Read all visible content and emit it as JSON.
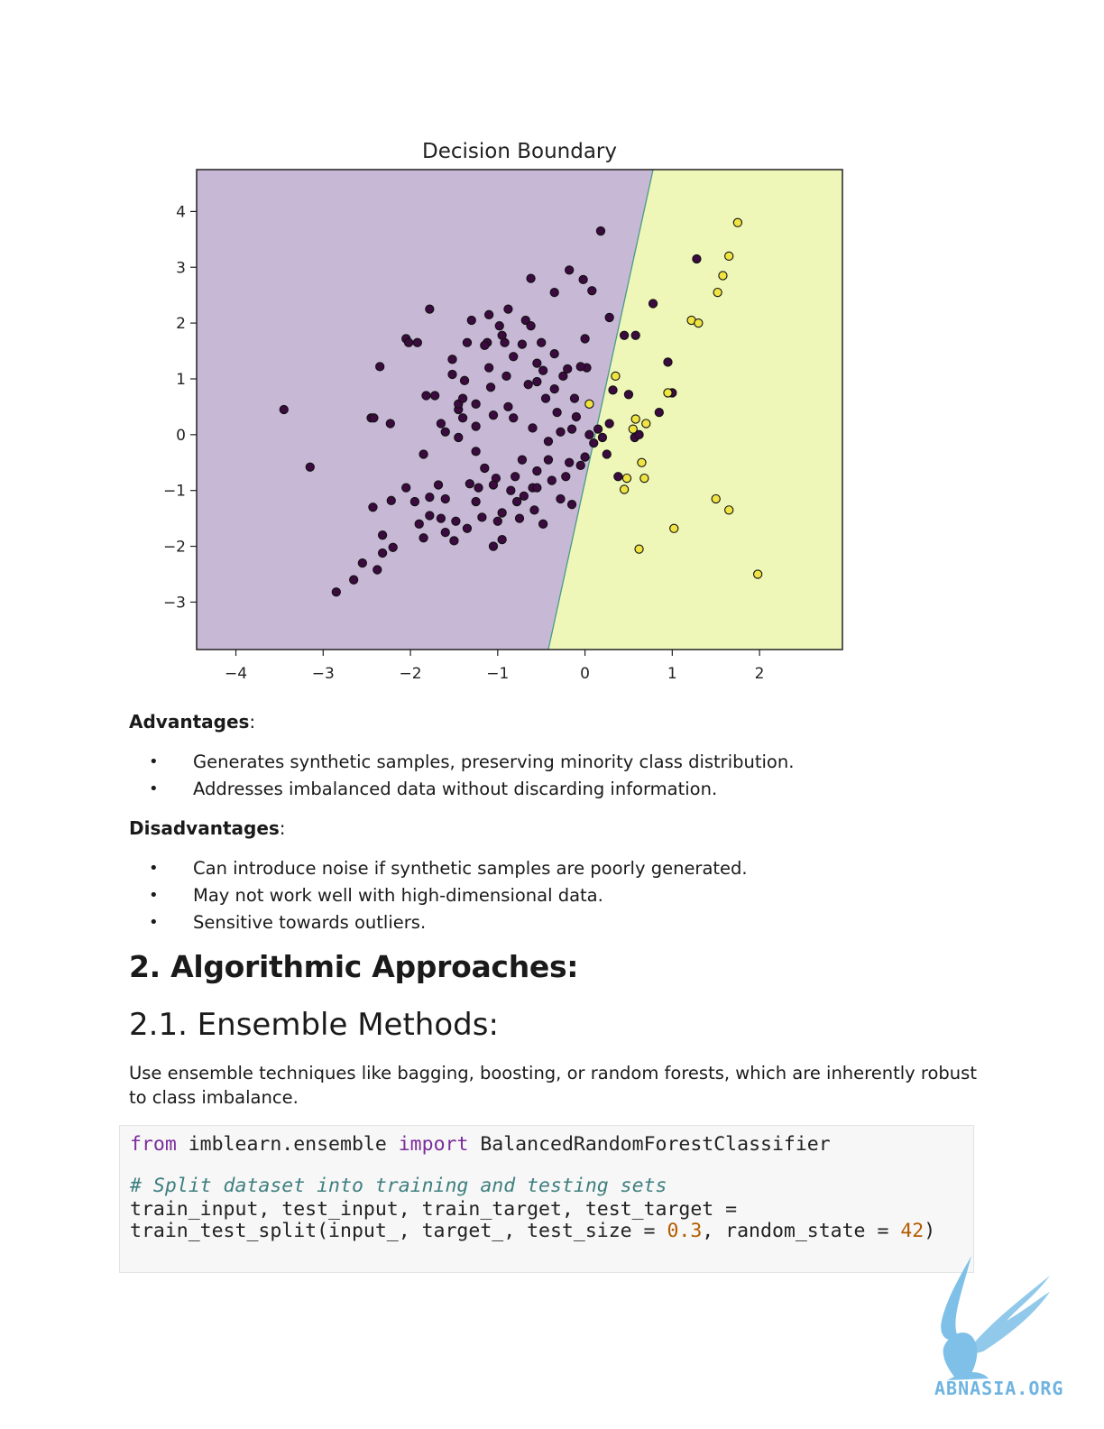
{
  "chart_data": {
    "type": "scatter",
    "title": "Decision Boundary",
    "xlabel": "",
    "ylabel": "",
    "xlim": [
      -4.45,
      2.95
    ],
    "ylim": [
      -3.85,
      4.75
    ],
    "xticks": [
      -4,
      -3,
      -2,
      -1,
      0,
      1,
      2
    ],
    "yticks": [
      -3,
      -2,
      -1,
      0,
      1,
      2,
      3,
      4
    ],
    "xtick_labels": [
      "−4",
      "−3",
      "−2",
      "−1",
      "0",
      "1",
      "2"
    ],
    "ytick_labels": [
      "−3",
      "−2",
      "−1",
      "0",
      "1",
      "2",
      "3",
      "4"
    ],
    "grid": false,
    "boundary": {
      "bottom_x": -0.42,
      "top_x": 0.78
    },
    "regions": [
      {
        "side": "left",
        "color": "#c7b9d6"
      },
      {
        "side": "right",
        "color": "#eef7b8"
      }
    ],
    "series": [
      {
        "color": "#3b0a3f",
        "points": [
          [
            -3.45,
            0.45
          ],
          [
            -3.15,
            -0.58
          ],
          [
            -2.85,
            -2.82
          ],
          [
            -2.65,
            -2.6
          ],
          [
            -2.55,
            -2.3
          ],
          [
            -2.45,
            0.3
          ],
          [
            -2.42,
            0.3
          ],
          [
            -2.43,
            -1.3
          ],
          [
            -2.35,
            1.22
          ],
          [
            -2.32,
            -1.8
          ],
          [
            -2.32,
            -2.12
          ],
          [
            -2.2,
            -2.02
          ],
          [
            -2.23,
            0.2
          ],
          [
            -2.22,
            -1.18
          ],
          [
            -2.05,
            1.72
          ],
          [
            -2.02,
            1.65
          ],
          [
            -1.92,
            1.65
          ],
          [
            -1.9,
            -1.6
          ],
          [
            -1.85,
            -1.85
          ],
          [
            -1.82,
            0.7
          ],
          [
            -1.78,
            -1.12
          ],
          [
            -1.72,
            0.7
          ],
          [
            -1.68,
            -0.9
          ],
          [
            -1.65,
            -1.5
          ],
          [
            -1.6,
            -1.15
          ],
          [
            -1.5,
            -1.9
          ],
          [
            -1.48,
            -1.55
          ],
          [
            -1.45,
            0.45
          ],
          [
            -1.4,
            0.3
          ],
          [
            -1.45,
            -0.05
          ],
          [
            -1.52,
            1.08
          ],
          [
            -1.38,
            0.97
          ],
          [
            -1.35,
            1.65
          ],
          [
            -1.32,
            -0.88
          ],
          [
            -1.25,
            -1.2
          ],
          [
            -1.22,
            -0.95
          ],
          [
            -1.18,
            -1.48
          ],
          [
            -1.12,
            1.65
          ],
          [
            -1.1,
            1.2
          ],
          [
            -1.08,
            0.85
          ],
          [
            -1.05,
            0.35
          ],
          [
            -1.02,
            -0.78
          ],
          [
            -1.0,
            -1.55
          ],
          [
            -0.95,
            -1.4
          ],
          [
            -0.92,
            1.65
          ],
          [
            -0.9,
            1.05
          ],
          [
            -0.88,
            0.5
          ],
          [
            -0.82,
            0.3
          ],
          [
            -0.8,
            -0.75
          ],
          [
            -0.78,
            -1.2
          ],
          [
            -0.75,
            -1.5
          ],
          [
            -0.72,
            1.62
          ],
          [
            -0.68,
            2.05
          ],
          [
            -0.65,
            0.9
          ],
          [
            -0.62,
            1.95
          ],
          [
            -0.6,
            -0.95
          ],
          [
            -0.58,
            -1.35
          ],
          [
            -0.55,
            -0.65
          ],
          [
            -0.5,
            1.65
          ],
          [
            -0.48,
            1.15
          ],
          [
            -0.45,
            0.65
          ],
          [
            -0.42,
            -0.45
          ],
          [
            -0.38,
            -0.82
          ],
          [
            -0.35,
            1.45
          ],
          [
            -0.32,
            0.4
          ],
          [
            -0.28,
            -1.15
          ],
          [
            -0.25,
            1.05
          ],
          [
            -0.22,
            -0.75
          ],
          [
            -0.18,
            -0.5
          ],
          [
            -0.15,
            -1.25
          ],
          [
            -0.12,
            0.65
          ],
          [
            -0.1,
            0.32
          ],
          [
            -0.05,
            -0.55
          ],
          [
            0.0,
            -0.4
          ],
          [
            0.05,
            0.0
          ],
          [
            0.1,
            -0.15
          ],
          [
            0.15,
            0.1
          ],
          [
            0.2,
            -0.05
          ],
          [
            -0.88,
            2.25
          ],
          [
            -0.98,
            1.95
          ],
          [
            -1.1,
            2.15
          ],
          [
            -1.3,
            2.05
          ],
          [
            -0.62,
            2.8
          ],
          [
            -0.35,
            2.55
          ],
          [
            -0.18,
            2.95
          ],
          [
            -0.02,
            2.78
          ],
          [
            0.08,
            2.58
          ],
          [
            -1.78,
            2.25
          ],
          [
            -1.52,
            1.35
          ],
          [
            -0.82,
            1.4
          ],
          [
            -0.55,
            1.28
          ],
          [
            -0.35,
            0.82
          ],
          [
            0.0,
            1.72
          ],
          [
            0.02,
            1.2
          ],
          [
            -0.05,
            1.22
          ],
          [
            -0.2,
            1.18
          ],
          [
            0.28,
            2.1
          ],
          [
            0.18,
            3.65
          ],
          [
            -1.25,
            -0.3
          ],
          [
            -1.45,
            0.55
          ],
          [
            -1.85,
            -0.35
          ],
          [
            -1.05,
            -2.0
          ],
          [
            -1.25,
            0.15
          ],
          [
            -0.95,
            1.78
          ],
          [
            -1.15,
            1.6
          ],
          [
            0.25,
            -0.35
          ],
          [
            0.38,
            -0.75
          ],
          [
            0.45,
            1.78
          ],
          [
            0.58,
            1.78
          ],
          [
            0.57,
            -0.05
          ],
          [
            0.62,
            0.0
          ],
          [
            0.78,
            2.35
          ],
          [
            0.85,
            0.4
          ],
          [
            0.95,
            1.3
          ],
          [
            1.0,
            0.75
          ],
          [
            1.28,
            3.15
          ],
          [
            0.5,
            0.72
          ],
          [
            0.32,
            0.8
          ],
          [
            0.28,
            0.2
          ],
          [
            -0.6,
            0.12
          ],
          [
            -0.42,
            -0.12
          ],
          [
            -0.28,
            0.05
          ],
          [
            -0.55,
            -0.95
          ],
          [
            -0.48,
            -1.6
          ],
          [
            -1.05,
            -0.9
          ],
          [
            -1.95,
            -1.2
          ],
          [
            -2.05,
            -0.95
          ],
          [
            -1.78,
            -1.45
          ],
          [
            -1.6,
            -1.75
          ],
          [
            -1.35,
            -1.68
          ],
          [
            -2.38,
            -2.42
          ],
          [
            -1.25,
            0.55
          ],
          [
            -1.15,
            -0.6
          ],
          [
            -0.72,
            -0.45
          ],
          [
            -0.85,
            -1.0
          ],
          [
            -1.65,
            0.2
          ],
          [
            -1.6,
            0.05
          ],
          [
            -1.4,
            0.65
          ],
          [
            -0.55,
            0.95
          ],
          [
            -0.15,
            0.1
          ],
          [
            -0.95,
            -1.88
          ],
          [
            -0.7,
            -1.1
          ]
        ]
      },
      {
        "color": "#f0e442",
        "points": [
          [
            1.75,
            3.8
          ],
          [
            1.65,
            3.2
          ],
          [
            1.58,
            2.85
          ],
          [
            1.52,
            2.55
          ],
          [
            1.22,
            2.05
          ],
          [
            1.3,
            2.0
          ],
          [
            0.35,
            1.05
          ],
          [
            0.05,
            0.55
          ],
          [
            0.95,
            0.75
          ],
          [
            0.58,
            0.28
          ],
          [
            0.55,
            0.1
          ],
          [
            0.7,
            0.2
          ],
          [
            0.65,
            -0.5
          ],
          [
            0.48,
            -0.78
          ],
          [
            0.68,
            -0.78
          ],
          [
            0.45,
            -0.98
          ],
          [
            1.5,
            -1.15
          ],
          [
            1.65,
            -1.35
          ],
          [
            1.02,
            -1.68
          ],
          [
            0.62,
            -2.05
          ],
          [
            1.98,
            -2.5
          ]
        ]
      }
    ]
  },
  "sections": {
    "advantages_label": "Advantages",
    "advantages": [
      "Generates synthetic samples, preserving minority class distribution.",
      "Addresses imbalanced data without discarding information."
    ],
    "disadvantages_label": "Disadvantages",
    "disadvantages": [
      "Can introduce noise if synthetic samples are poorly generated.",
      "May not work well with high-dimensional data.",
      "Sensitive towards outliers."
    ],
    "heading_2": "2. Algorithmic Approaches:",
    "heading_2_1": "2.1. Ensemble Methods:",
    "paragraph": "Use ensemble techniques like bagging, boosting, or random forests, which are inherently robust to class imbalance."
  },
  "code": {
    "line1": {
      "kw1": "from",
      "mod": " imblearn.ensemble ",
      "kw2": "import",
      "name": " BalancedRandomForestClassifier"
    },
    "comment": "# Split dataset into training and testing sets",
    "line3": "train_input, test_input, train_target, test_target =",
    "line4": {
      "a": "train_test_split(input_, target_, test_size = ",
      "n1": "0.3",
      "b": ", random_state = ",
      "n2": "42",
      "c": ")"
    }
  },
  "logo": {
    "text": "ABNASIA.ORG",
    "color": "#6fb4e0"
  }
}
